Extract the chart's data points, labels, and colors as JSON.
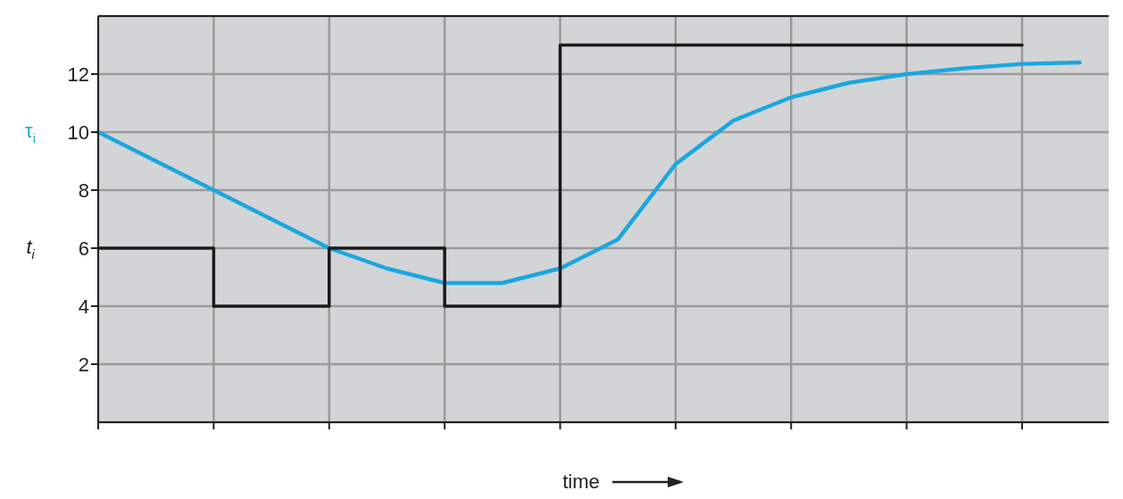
{
  "chart_data": {
    "type": "line",
    "xlabel": "time",
    "categories": [
      null,
      null,
      null,
      null,
      null,
      null,
      null,
      null,
      null,
      null,
      null,
      null,
      null,
      null,
      null,
      null,
      null,
      null
    ],
    "ylim": [
      0,
      14
    ],
    "yticks": [
      2,
      4,
      6,
      8,
      10,
      12
    ],
    "grid": true,
    "marker": "none",
    "line_style": "solid",
    "tick_labels": "y",
    "series": [
      {
        "name": "τ$_{i}$",
        "color": "#1aa7e0",
        "values": [
          10,
          9,
          8,
          7,
          6,
          5.3,
          4.8,
          4.8,
          5.3,
          6.3,
          8.9,
          10.4,
          11.2,
          11.7,
          12,
          12.2,
          12.35,
          12.4
        ]
      },
      {
        "name": "t$_{i}$",
        "type": "step",
        "color": "#1a1a1a",
        "values": [
          6,
          6,
          4,
          4,
          6,
          6,
          4,
          4,
          13,
          13,
          13,
          13,
          13,
          13,
          13,
          13,
          13,
          null
        ]
      }
    ]
  }
}
